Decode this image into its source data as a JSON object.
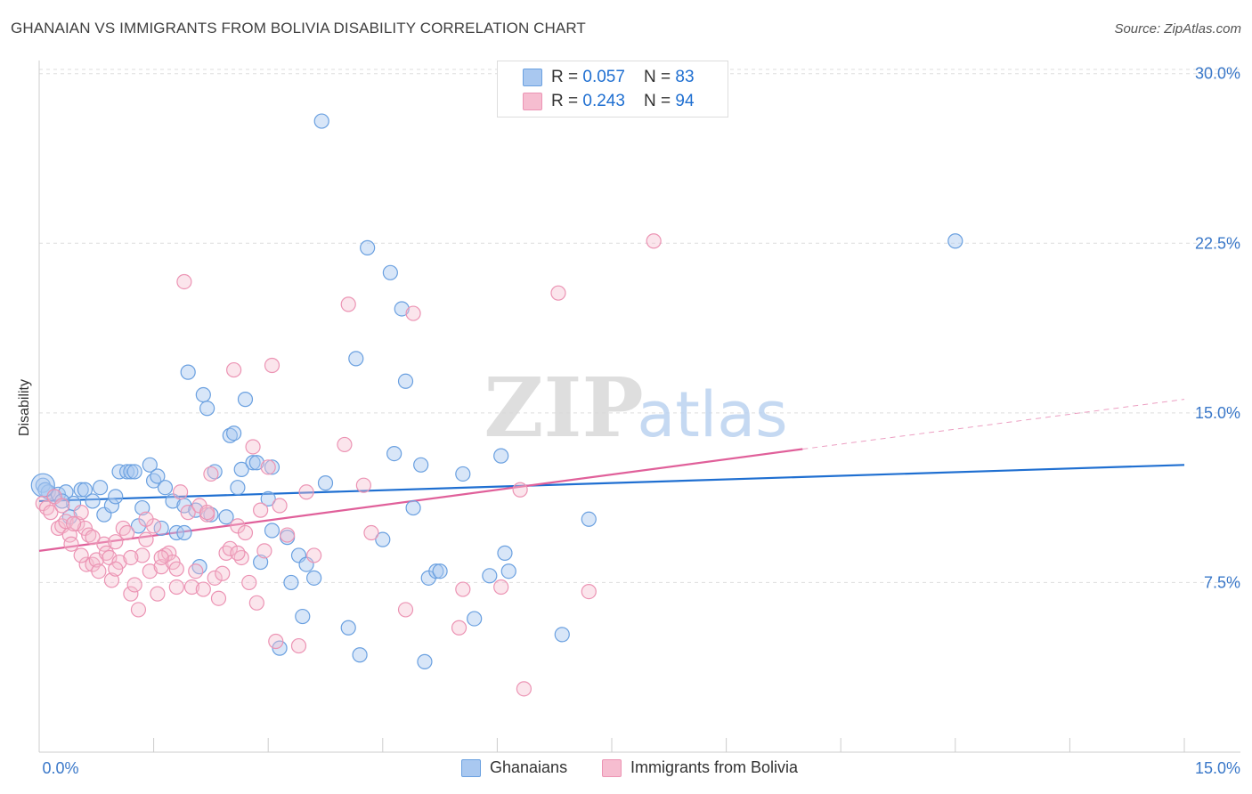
{
  "header": {
    "title": "GHANAIAN VS IMMIGRANTS FROM BOLIVIA DISABILITY CORRELATION CHART",
    "source": "Source: ZipAtlas.com"
  },
  "watermark": {
    "zip": "ZIP",
    "atlas": "atlas"
  },
  "colors": {
    "blue": "#1f6fd1",
    "blue_fill": "#a9c8f0",
    "blue_stroke": "#6aa0e0",
    "pink": "#e0609a",
    "pink_fill": "#f6bdd0",
    "pink_stroke": "#ec94b4",
    "grid": "#dddddd",
    "axis_text": "#3a78c9"
  },
  "legend_top": {
    "rows": [
      {
        "r_label": "R = ",
        "r_value": "0.057",
        "n_label": "N = ",
        "n_value": "83"
      },
      {
        "r_label": "R = ",
        "r_value": "0.243",
        "n_label": "N = ",
        "n_value": "94"
      }
    ]
  },
  "chart_data": {
    "type": "scatter",
    "title": "GHANAIAN VS IMMIGRANTS FROM BOLIVIA DISABILITY CORRELATION CHART",
    "xlabel": "",
    "ylabel": "Disability",
    "xlim": [
      0,
      15
    ],
    "ylim": [
      0,
      30.5
    ],
    "x_tick_labels": [
      "0.0%",
      "15.0%"
    ],
    "y_ticks": [
      7.5,
      15.0,
      22.5,
      30.0
    ],
    "y_tick_labels": [
      "7.5%",
      "15.0%",
      "22.5%",
      "30.0%"
    ],
    "grid": true,
    "legend_position": "top-center",
    "series": [
      {
        "name": "Ghanaians",
        "color": "#1f6fd1",
        "trend": {
          "x": [
            0,
            15
          ],
          "y": [
            11.1,
            12.7
          ]
        },
        "points": [
          [
            0.05,
            11.8
          ],
          [
            0.12,
            11.5
          ],
          [
            0.2,
            11.3
          ],
          [
            0.25,
            11.4
          ],
          [
            0.35,
            11.5
          ],
          [
            0.4,
            10.4
          ],
          [
            0.45,
            11.0
          ],
          [
            0.55,
            11.6
          ],
          [
            0.6,
            11.6
          ],
          [
            0.7,
            11.1
          ],
          [
            0.8,
            11.7
          ],
          [
            0.85,
            10.5
          ],
          [
            0.95,
            10.9
          ],
          [
            1.0,
            11.3
          ],
          [
            1.05,
            12.4
          ],
          [
            1.15,
            12.4
          ],
          [
            1.2,
            12.4
          ],
          [
            1.3,
            10.0
          ],
          [
            1.35,
            10.8
          ],
          [
            1.45,
            12.7
          ],
          [
            1.5,
            12.0
          ],
          [
            1.55,
            12.2
          ],
          [
            1.6,
            9.9
          ],
          [
            1.65,
            11.7
          ],
          [
            1.75,
            11.1
          ],
          [
            1.8,
            9.7
          ],
          [
            1.9,
            10.9
          ],
          [
            1.9,
            9.7
          ],
          [
            1.95,
            16.8
          ],
          [
            2.05,
            10.7
          ],
          [
            2.1,
            8.2
          ],
          [
            2.15,
            15.8
          ],
          [
            2.2,
            15.2
          ],
          [
            2.25,
            10.5
          ],
          [
            2.3,
            12.4
          ],
          [
            2.45,
            10.4
          ],
          [
            2.5,
            14.0
          ],
          [
            2.55,
            14.1
          ],
          [
            2.6,
            11.7
          ],
          [
            2.65,
            12.5
          ],
          [
            2.7,
            15.6
          ],
          [
            2.8,
            12.8
          ],
          [
            2.9,
            8.4
          ],
          [
            3.0,
            11.2
          ],
          [
            3.05,
            9.8
          ],
          [
            3.15,
            4.6
          ],
          [
            3.25,
            9.5
          ],
          [
            3.3,
            7.5
          ],
          [
            3.4,
            8.7
          ],
          [
            3.45,
            6.0
          ],
          [
            3.5,
            8.3
          ],
          [
            3.6,
            7.7
          ],
          [
            3.7,
            27.9
          ],
          [
            3.75,
            11.9
          ],
          [
            4.05,
            5.5
          ],
          [
            4.15,
            17.4
          ],
          [
            4.2,
            4.3
          ],
          [
            4.3,
            22.3
          ],
          [
            4.5,
            9.4
          ],
          [
            4.6,
            21.2
          ],
          [
            4.65,
            13.2
          ],
          [
            4.75,
            19.6
          ],
          [
            4.8,
            16.4
          ],
          [
            4.9,
            10.8
          ],
          [
            5.0,
            12.7
          ],
          [
            5.05,
            4.0
          ],
          [
            5.1,
            7.7
          ],
          [
            5.2,
            8.0
          ],
          [
            5.25,
            8.0
          ],
          [
            5.55,
            12.3
          ],
          [
            5.7,
            5.9
          ],
          [
            5.9,
            7.8
          ],
          [
            6.05,
            13.1
          ],
          [
            6.1,
            8.8
          ],
          [
            6.15,
            8.0
          ],
          [
            6.85,
            5.2
          ],
          [
            7.2,
            10.3
          ],
          [
            12.0,
            22.6
          ],
          [
            0.08,
            11.6
          ],
          [
            0.3,
            11.1
          ],
          [
            1.25,
            12.4
          ],
          [
            2.85,
            12.8
          ],
          [
            3.05,
            12.6
          ]
        ]
      },
      {
        "name": "Immigrants from Bolivia",
        "color": "#e0609a",
        "trend": {
          "x": [
            0,
            10.0
          ],
          "y": [
            8.9,
            13.4
          ]
        },
        "trend_extension": {
          "x": [
            10.0,
            15
          ],
          "y": [
            13.4,
            15.6
          ]
        },
        "points": [
          [
            0.05,
            11.0
          ],
          [
            0.1,
            10.8
          ],
          [
            0.15,
            10.6
          ],
          [
            0.2,
            11.3
          ],
          [
            0.25,
            9.9
          ],
          [
            0.3,
            10.0
          ],
          [
            0.35,
            10.2
          ],
          [
            0.4,
            9.6
          ],
          [
            0.42,
            9.2
          ],
          [
            0.5,
            10.1
          ],
          [
            0.55,
            10.6
          ],
          [
            0.6,
            9.9
          ],
          [
            0.65,
            9.6
          ],
          [
            0.62,
            8.3
          ],
          [
            0.7,
            8.3
          ],
          [
            0.75,
            8.5
          ],
          [
            0.78,
            8.0
          ],
          [
            0.85,
            9.2
          ],
          [
            0.88,
            8.8
          ],
          [
            0.92,
            8.6
          ],
          [
            0.95,
            7.6
          ],
          [
            1.0,
            9.3
          ],
          [
            1.05,
            8.4
          ],
          [
            1.1,
            9.9
          ],
          [
            1.15,
            9.7
          ],
          [
            1.2,
            7.0
          ],
          [
            1.25,
            7.4
          ],
          [
            1.3,
            6.3
          ],
          [
            1.35,
            8.7
          ],
          [
            1.4,
            9.4
          ],
          [
            1.45,
            8.0
          ],
          [
            1.5,
            10.0
          ],
          [
            1.55,
            7.0
          ],
          [
            1.6,
            8.2
          ],
          [
            1.65,
            8.7
          ],
          [
            1.7,
            8.8
          ],
          [
            1.75,
            8.4
          ],
          [
            1.8,
            8.1
          ],
          [
            1.85,
            11.5
          ],
          [
            1.9,
            20.8
          ],
          [
            1.95,
            10.6
          ],
          [
            2.0,
            7.3
          ],
          [
            2.05,
            8.0
          ],
          [
            2.1,
            10.9
          ],
          [
            2.15,
            7.2
          ],
          [
            2.2,
            10.5
          ],
          [
            2.25,
            12.3
          ],
          [
            2.3,
            7.7
          ],
          [
            2.35,
            6.8
          ],
          [
            2.4,
            7.9
          ],
          [
            2.45,
            8.8
          ],
          [
            2.5,
            9.0
          ],
          [
            2.55,
            16.9
          ],
          [
            2.6,
            10.0
          ],
          [
            2.65,
            8.6
          ],
          [
            2.7,
            9.7
          ],
          [
            2.75,
            7.5
          ],
          [
            2.8,
            13.5
          ],
          [
            2.85,
            6.6
          ],
          [
            2.9,
            10.7
          ],
          [
            2.95,
            8.9
          ],
          [
            3.0,
            12.6
          ],
          [
            3.05,
            17.1
          ],
          [
            3.1,
            4.9
          ],
          [
            3.15,
            10.9
          ],
          [
            3.25,
            9.6
          ],
          [
            3.4,
            4.7
          ],
          [
            3.5,
            11.5
          ],
          [
            3.6,
            8.7
          ],
          [
            4.0,
            13.6
          ],
          [
            4.05,
            19.8
          ],
          [
            4.25,
            11.8
          ],
          [
            4.35,
            9.7
          ],
          [
            4.8,
            6.3
          ],
          [
            4.9,
            19.4
          ],
          [
            5.5,
            5.5
          ],
          [
            5.55,
            7.2
          ],
          [
            6.05,
            7.3
          ],
          [
            6.3,
            11.6
          ],
          [
            6.35,
            2.8
          ],
          [
            6.8,
            20.3
          ],
          [
            7.2,
            7.1
          ],
          [
            8.05,
            22.6
          ],
          [
            1.6,
            8.6
          ],
          [
            0.45,
            10.1
          ],
          [
            0.7,
            9.5
          ],
          [
            1.0,
            8.1
          ],
          [
            1.2,
            8.6
          ],
          [
            2.2,
            10.6
          ],
          [
            0.3,
            10.9
          ],
          [
            1.8,
            7.3
          ],
          [
            2.6,
            8.8
          ],
          [
            0.55,
            8.7
          ],
          [
            1.4,
            10.3
          ]
        ]
      }
    ]
  }
}
